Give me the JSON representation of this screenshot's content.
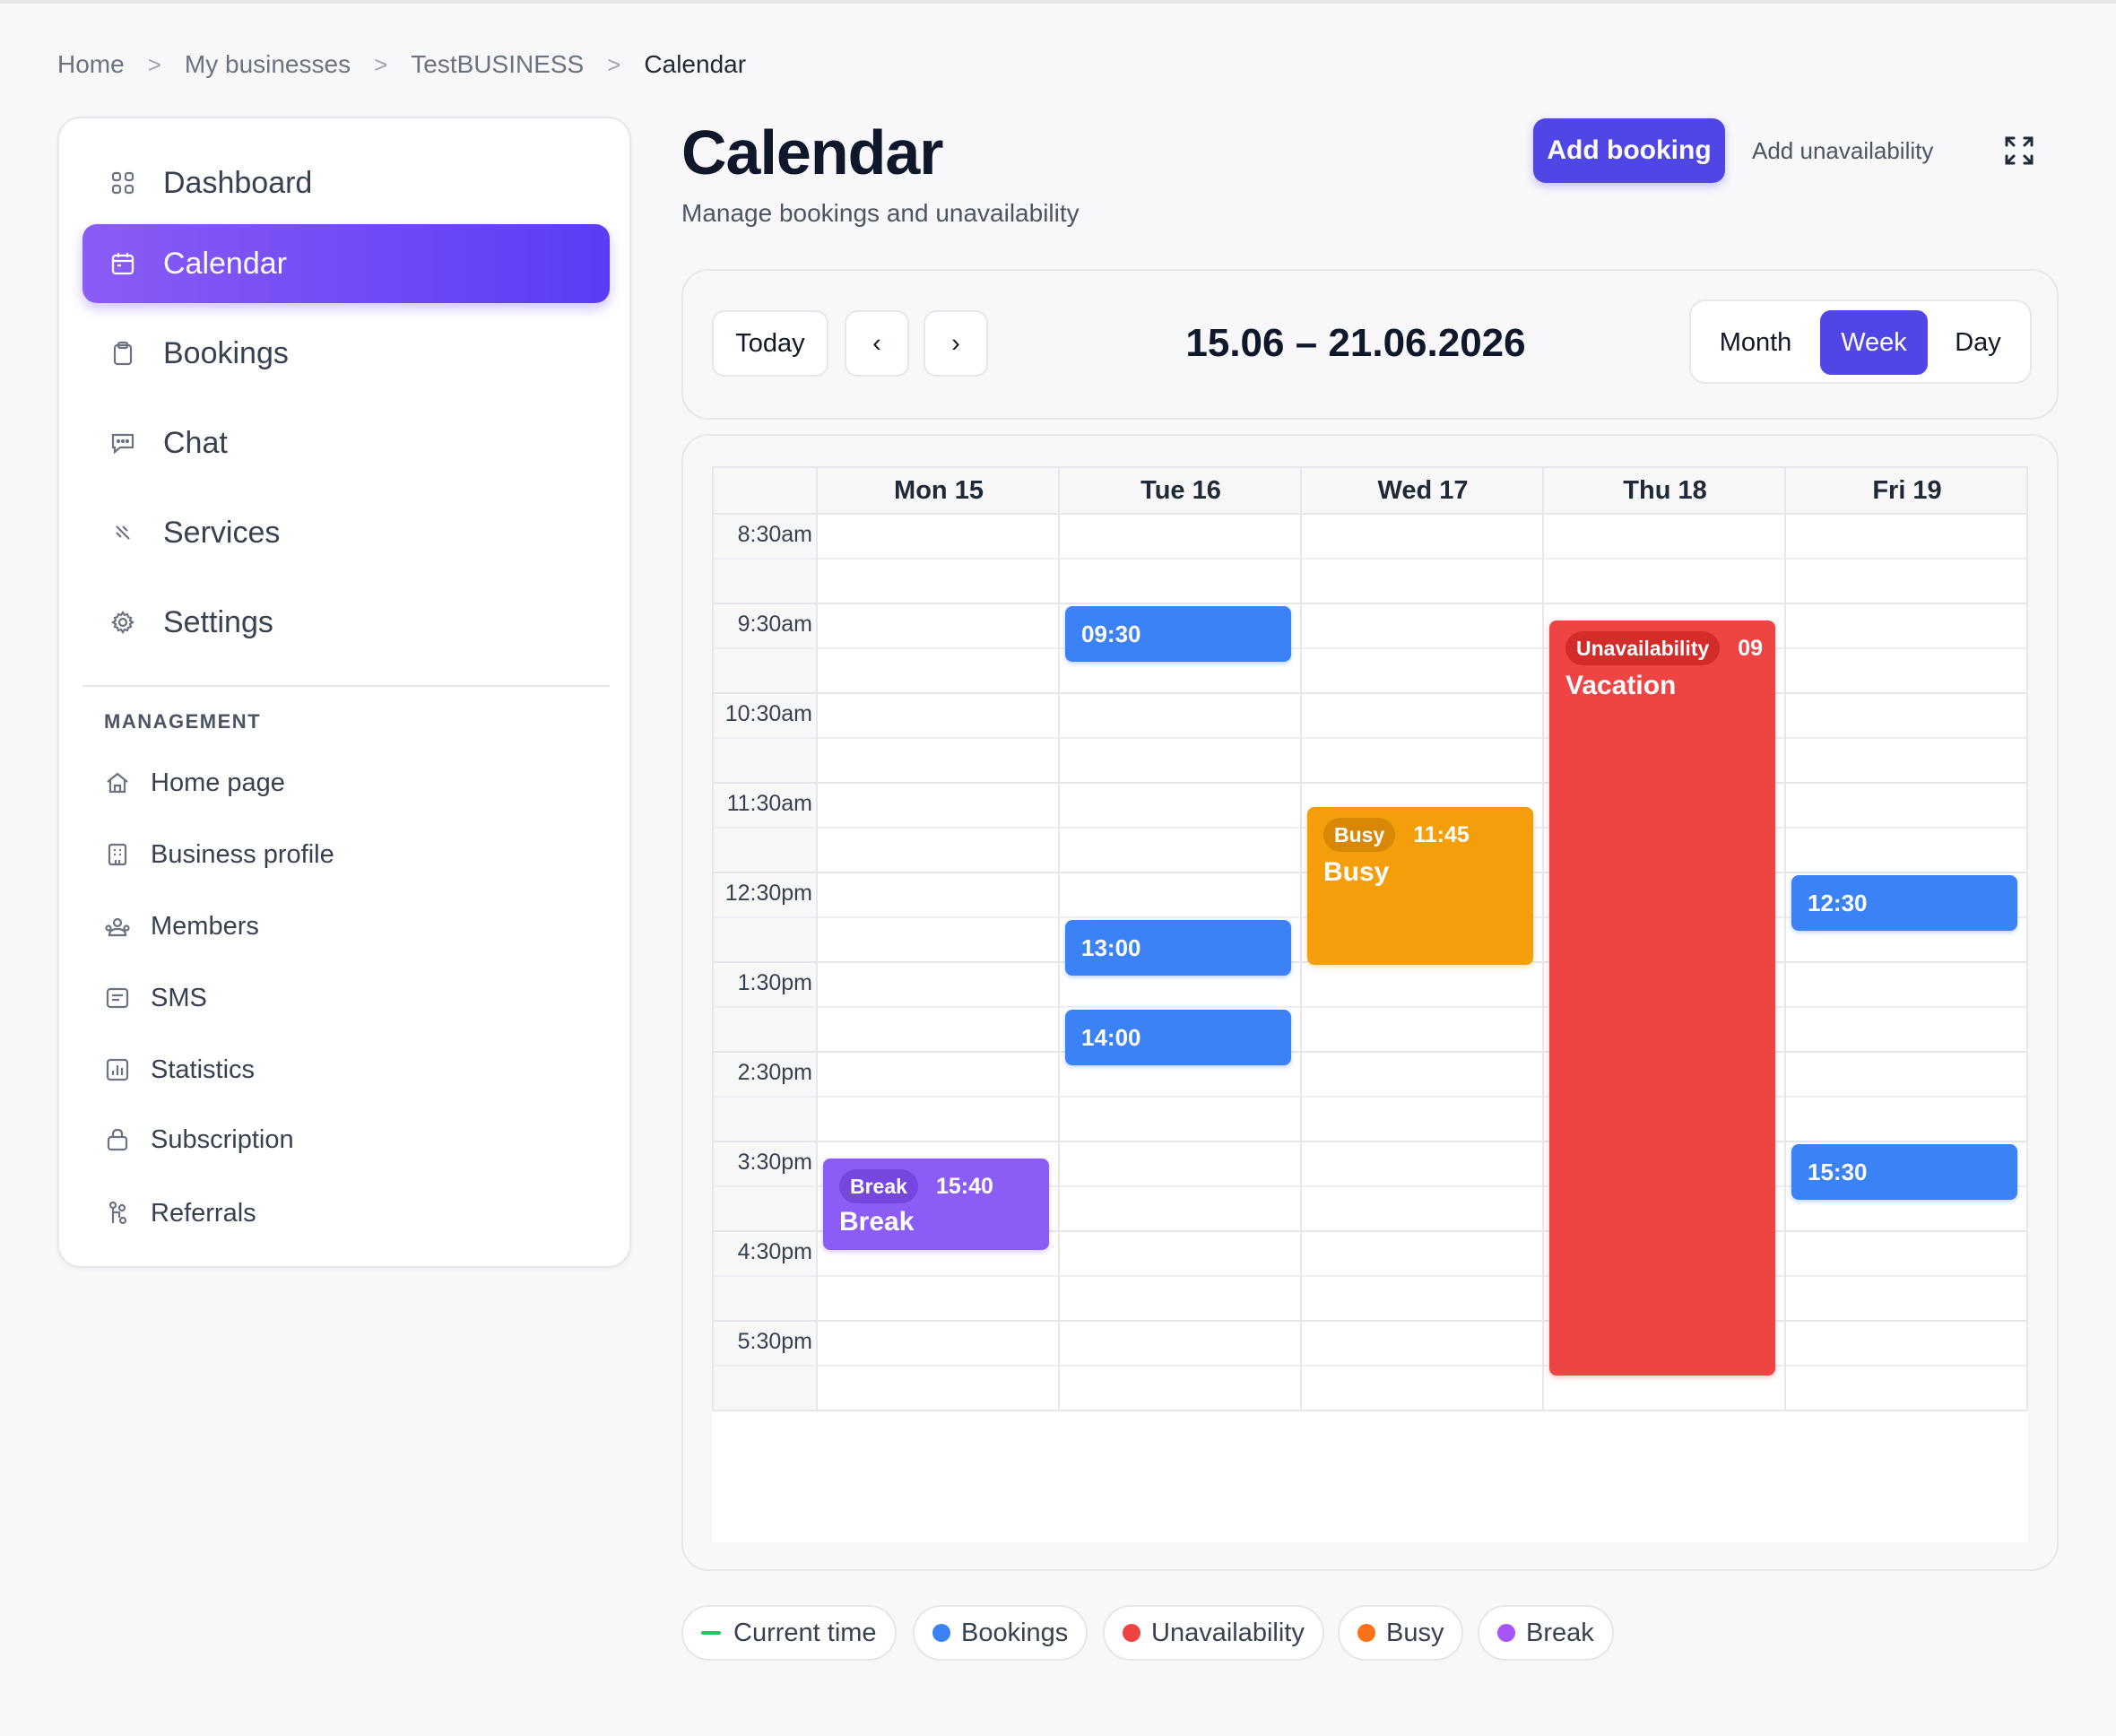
{
  "breadcrumb": {
    "items": [
      "Home",
      "My businesses",
      "TestBUSINESS"
    ],
    "current": "Calendar",
    "separator": ">"
  },
  "sidebar": {
    "nav": [
      {
        "label": "Dashboard",
        "icon": "grid-icon"
      },
      {
        "label": "Calendar",
        "icon": "calendar-icon",
        "active": true
      },
      {
        "label": "Bookings",
        "icon": "clipboard-icon"
      },
      {
        "label": "Chat",
        "icon": "chat-icon"
      },
      {
        "label": "Services",
        "icon": "services-icon"
      },
      {
        "label": "Settings",
        "icon": "gear-icon"
      }
    ],
    "section_label": "MANAGEMENT",
    "management": [
      {
        "label": "Home page",
        "icon": "home-icon"
      },
      {
        "label": "Business profile",
        "icon": "building-icon"
      },
      {
        "label": "Members",
        "icon": "members-icon"
      },
      {
        "label": "SMS",
        "icon": "sms-icon"
      },
      {
        "label": "Statistics",
        "icon": "statistics-icon"
      },
      {
        "label": "Subscription",
        "icon": "bag-icon"
      },
      {
        "label": "Referrals",
        "icon": "referrals-icon"
      }
    ]
  },
  "header": {
    "title": "Calendar",
    "subtitle": "Manage bookings and unavailability",
    "add_booking": "Add booking",
    "add_unavailability": "Add unavailability",
    "expand_icon": "expand-icon"
  },
  "toolbar": {
    "today": "Today",
    "prev": "‹",
    "next": "›",
    "range": "15.06 – 21.06.2026",
    "views": [
      "Month",
      "Week",
      "Day"
    ],
    "active_view": "Week"
  },
  "calendar": {
    "days": [
      "Mon 15",
      "Tue 16",
      "Wed 17",
      "Thu 18",
      "Fri 19"
    ],
    "time_labels": [
      "8:30am",
      "9:30am",
      "10:30am",
      "11:30am",
      "12:30pm",
      "1:30pm",
      "2:30pm",
      "3:30pm",
      "4:30pm",
      "5:30pm"
    ],
    "events": {
      "tue_0930": {
        "time": "09:30",
        "type": "booking"
      },
      "tue_1300": {
        "time": "13:00",
        "type": "booking"
      },
      "tue_1400": {
        "time": "14:00",
        "type": "booking"
      },
      "thu_unav": {
        "badge": "Unavailability",
        "time": "09",
        "title": "Vacation",
        "type": "unavailability"
      },
      "wed_busy": {
        "badge": "Busy",
        "time": "11:45",
        "title": "Busy",
        "type": "busy"
      },
      "fri_1230": {
        "time": "12:30",
        "type": "booking"
      },
      "fri_1530": {
        "time": "15:30",
        "type": "booking"
      },
      "mon_break": {
        "badge": "Break",
        "time": "15:40",
        "title": "Break",
        "type": "break"
      }
    }
  },
  "legend": [
    {
      "label": "Current time",
      "color": "#22c55e"
    },
    {
      "label": "Bookings",
      "color": "#3b82f6"
    },
    {
      "label": "Unavailability",
      "color": "#ef4444"
    },
    {
      "label": "Busy",
      "color": "#f97316"
    },
    {
      "label": "Break",
      "color": "#a855f7"
    }
  ],
  "colors": {
    "accent": "#4f46e5",
    "booking": "#3b82f6",
    "unavailability": "#ef4444",
    "busy": "#f59e0b",
    "break": "#8b5cf6"
  }
}
